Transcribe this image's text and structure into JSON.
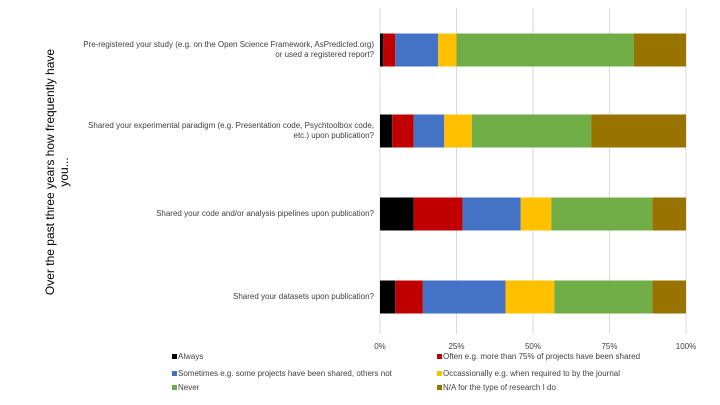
{
  "chart_data": {
    "type": "bar",
    "orientation": "horizontal",
    "stacked": "percent",
    "ytitle": "Over the past three years how frequently have you...",
    "categories": [
      "Pre-registered your study (e.g. on the Open Science Framework, AsPredicted.org) or used a registered report?",
      "Shared your experimental paradigm (e.g. Presentation code, Psychtoolbox code, etc.) upon publication?",
      "Shared your code and/or analysis pipelines upon publication?",
      "Shared your datasets upon publication?"
    ],
    "series": [
      {
        "name": "Always",
        "color": "#000000",
        "values": [
          1,
          4,
          11,
          5
        ]
      },
      {
        "name": "Often e.g. more than 75% of projects have been shared",
        "color": "#c00000",
        "values": [
          4,
          7,
          16,
          9
        ]
      },
      {
        "name": "Sometimes e.g. some projects have been shared, others not",
        "color": "#4472c4",
        "values": [
          14,
          10,
          19,
          27
        ]
      },
      {
        "name": "Occassionally e.g. when required to by the journal",
        "color": "#ffc000",
        "values": [
          6,
          9,
          10,
          16
        ]
      },
      {
        "name": "Never",
        "color": "#70ad47",
        "values": [
          58,
          39,
          33,
          32
        ]
      },
      {
        "name": "N/A for the type of research I do",
        "color": "#997300",
        "values": [
          17,
          31,
          11,
          11
        ]
      }
    ],
    "xticks": [
      "0%",
      "25%",
      "50%",
      "75%",
      "100%"
    ],
    "xlim": [
      0,
      100
    ],
    "grid": true,
    "legend_position": "bottom"
  }
}
